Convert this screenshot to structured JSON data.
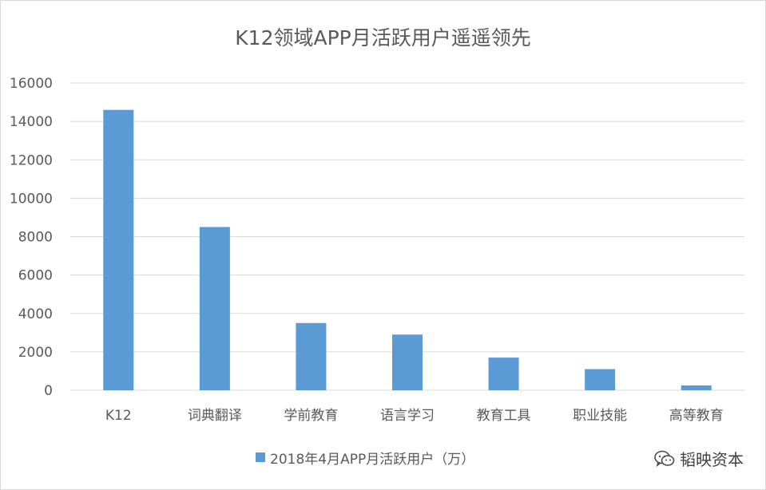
{
  "chart_data": {
    "type": "bar",
    "title": "K12领域APP月活跃用户遥遥领先",
    "categories": [
      "K12",
      "词典翻译",
      "学前教育",
      "语言学习",
      "教育工具",
      "职业技能",
      "高等教育"
    ],
    "series": [
      {
        "name": "2018年4月APP月活跃用户（万）",
        "values": [
          14600,
          8500,
          3500,
          2900,
          1700,
          1100,
          250
        ]
      }
    ],
    "ylim": [
      0,
      16000
    ],
    "yticks": [
      0,
      2000,
      4000,
      6000,
      8000,
      10000,
      12000,
      14000,
      16000
    ],
    "grid": true,
    "legend_position": "bottom",
    "bar_color": "#5b9bd5",
    "grid_color": "#d9d9d9",
    "text_color": "#595959"
  },
  "watermark": {
    "text": "韬映资本",
    "icon": "wechat-icon"
  }
}
